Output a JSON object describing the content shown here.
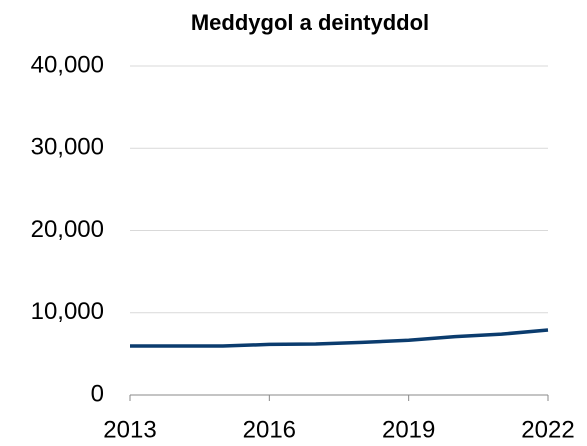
{
  "chart_data": {
    "type": "line",
    "title": "Meddygol a deintyddol",
    "x": [
      2013,
      2014,
      2015,
      2016,
      2017,
      2018,
      2019,
      2020,
      2021,
      2022
    ],
    "series": [
      {
        "name": "Meddygol a deintyddol",
        "color": "#0b3c6e",
        "values": [
          5950,
          5950,
          5950,
          6150,
          6200,
          6400,
          6650,
          7100,
          7400,
          7900
        ]
      }
    ],
    "xlim": [
      2013,
      2022
    ],
    "xticks": [
      2013,
      2016,
      2019,
      2022
    ],
    "ylim": [
      0,
      40000
    ],
    "yticks": [
      0,
      {
        "value": 10000,
        "label": "10,000"
      },
      {
        "value": 20000,
        "label": "20,000"
      },
      {
        "value": 30000,
        "label": "30,000"
      },
      {
        "value": 40000,
        "label": "40,000"
      }
    ],
    "grid": true
  }
}
